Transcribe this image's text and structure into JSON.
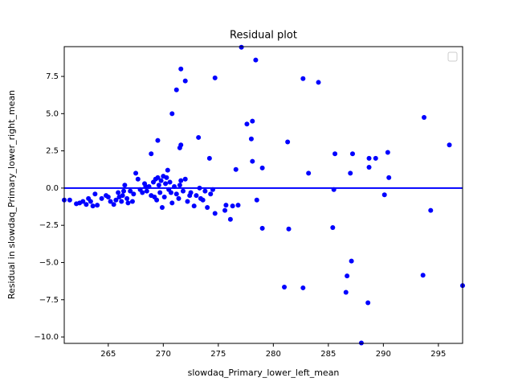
{
  "chart_data": {
    "type": "scatter",
    "title": "Residual plot",
    "x_label": "slowdaq_Primary_lower_left_mean",
    "y_label": "Residual in slowdaq_Primary_lower_right_mean",
    "xlim": [
      261.0,
      297.2
    ],
    "ylim": [
      -10.43,
      9.5
    ],
    "xticks": [
      265,
      270,
      275,
      280,
      285,
      290,
      295
    ],
    "yticks": [
      {
        "value": -10,
        "label": "−10.0"
      },
      {
        "value": -7.5,
        "label": "−7.5"
      },
      {
        "value": -5,
        "label": "−5.0"
      },
      {
        "value": -2.5,
        "label": "−2.5"
      },
      {
        "value": 0,
        "label": "0.0"
      },
      2.5,
      {
        "value": 5,
        "label": "5.0"
      },
      7.5
    ],
    "reference_line": 0,
    "series": [
      {
        "color": "#0000ff",
        "x": [
          277.1,
          278.4,
          271.6,
          272.0,
          274.7,
          282.7,
          284.1,
          271.2,
          270.8,
          293.7,
          278.1,
          277.6,
          273.2,
          269.5,
          278.0,
          281.3,
          296.0,
          271.6,
          271.5,
          290.4,
          287.2,
          285.6,
          268.9,
          274.2,
          288.7,
          289.3,
          288.7,
          278.1,
          279.0,
          276.6,
          287.0,
          283.2,
          290.5,
          285.5,
          290.1,
          294.3,
          278.5,
          275.7,
          276.3,
          276.8,
          275.6,
          274.7,
          276.1,
          279.0,
          281.4,
          285.4,
          287.1,
          286.7,
          293.6,
          281.0,
          282.7,
          297.2,
          286.6,
          288.6,
          288.0,
          261.0,
          261.5,
          262.1,
          262.4,
          262.7,
          263.0,
          263.2,
          263.4,
          263.6,
          263.8,
          264.0,
          264.4,
          264.8,
          265.0,
          265.2,
          265.5,
          265.7,
          265.9,
          266.0,
          266.2,
          266.3,
          266.5,
          266.7,
          266.8,
          267.0,
          267.3,
          267.5,
          267.7,
          267.9,
          268.1,
          268.3,
          268.5,
          268.7,
          268.9,
          269.1,
          269.3,
          269.4,
          269.5,
          269.6,
          269.7,
          269.8,
          269.9,
          270.0,
          270.1,
          270.2,
          270.3,
          270.4,
          270.5,
          270.6,
          270.8,
          271.0,
          271.2,
          271.4,
          271.6,
          271.8,
          272.0,
          272.2,
          272.5,
          272.8,
          273.0,
          273.3,
          273.6,
          273.8,
          274.0,
          274.3,
          274.5,
          266.4,
          267.2,
          268.4,
          269.2,
          270.7,
          271.5,
          272.4,
          273.4
        ],
        "values": [
          9.46,
          8.6,
          8.0,
          7.2,
          7.4,
          7.35,
          7.1,
          6.6,
          5.0,
          4.75,
          4.5,
          4.3,
          3.4,
          3.2,
          3.3,
          3.1,
          2.9,
          2.9,
          2.7,
          2.4,
          2.3,
          2.3,
          2.3,
          2.0,
          2.0,
          2.0,
          1.4,
          1.8,
          1.35,
          1.25,
          1.0,
          1.0,
          0.7,
          -0.1,
          -0.45,
          -1.5,
          -0.8,
          -1.15,
          -1.2,
          -1.15,
          -1.5,
          -1.7,
          -2.1,
          -2.7,
          -2.75,
          -2.65,
          -4.9,
          -5.9,
          -5.85,
          -6.65,
          -6.7,
          -6.55,
          -7.0,
          -7.7,
          -10.4,
          -0.8,
          -0.8,
          -1.05,
          -1.0,
          -0.9,
          -1.1,
          -0.7,
          -0.9,
          -1.2,
          -0.4,
          -1.15,
          -0.7,
          -0.5,
          -0.6,
          -0.9,
          -1.1,
          -0.8,
          -0.3,
          -0.6,
          -0.9,
          -0.5,
          0.2,
          -0.7,
          -1.0,
          -0.2,
          -0.4,
          1.0,
          0.6,
          -0.1,
          -0.3,
          0.3,
          -0.2,
          0.1,
          -0.5,
          0.4,
          0.6,
          -0.8,
          0.7,
          0.2,
          -0.3,
          0.5,
          -1.3,
          0.8,
          -0.6,
          0.3,
          0.7,
          1.2,
          -0.1,
          0.4,
          -1.0,
          0.1,
          -0.4,
          -0.7,
          0.5,
          -0.2,
          0.6,
          -0.9,
          -0.3,
          -1.2,
          -0.5,
          0.0,
          -0.8,
          -0.2,
          -1.3,
          -0.4,
          -0.1,
          -0.2,
          -0.9,
          0.1,
          -0.6,
          -0.3,
          0.2,
          -0.5,
          -0.7
        ]
      }
    ]
  }
}
